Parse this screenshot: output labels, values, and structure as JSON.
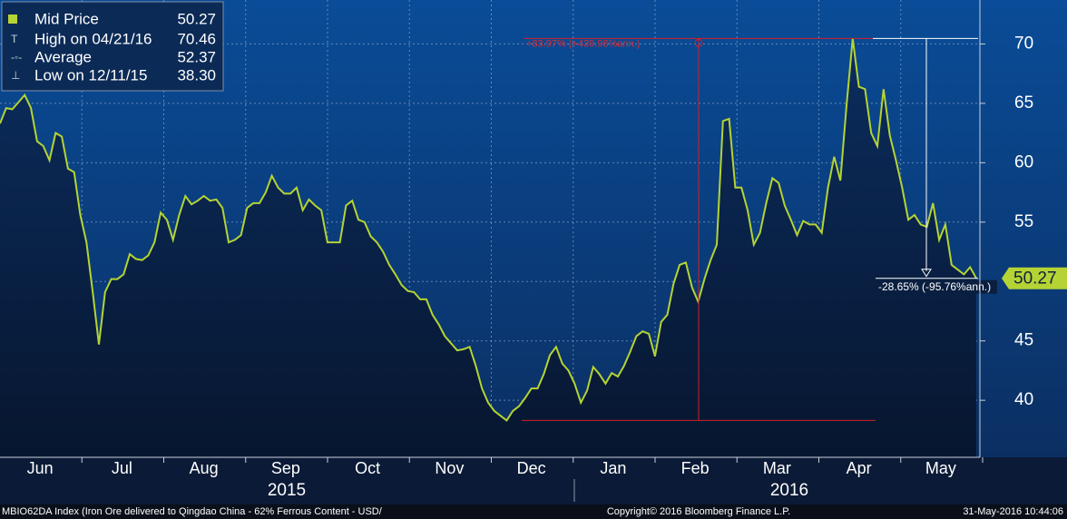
{
  "chart_data": {
    "type": "line",
    "series": [
      {
        "name": "Mid Price",
        "color": "#b5d334",
        "last_value": 50.27,
        "values": [
          63.3,
          64.6,
          64.5,
          65.1,
          65.7,
          64.6,
          61.8,
          61.4,
          60.2,
          62.5,
          62.2,
          59.5,
          59.2,
          55.6,
          53.3,
          49.1,
          44.7,
          49.1,
          50.2,
          50.2,
          50.6,
          52.3,
          51.9,
          51.8,
          52.2,
          53.3,
          55.8,
          55.2,
          53.5,
          55.6,
          57.2,
          56.5,
          56.8,
          57.2,
          56.8,
          56.9,
          56.2,
          53.3,
          53.5,
          53.9,
          56.2,
          56.6,
          56.6,
          57.5,
          58.9,
          57.9,
          57.4,
          57.4,
          57.9,
          56.0,
          56.9,
          56.4,
          56.0,
          53.3,
          53.3,
          53.3,
          56.4,
          56.8,
          55.2,
          55.0,
          53.8,
          53.3,
          52.5,
          51.4,
          50.6,
          49.7,
          49.2,
          49.1,
          48.5,
          48.5,
          47.2,
          46.4,
          45.4,
          44.8,
          44.2,
          44.3,
          44.5,
          42.9,
          41.0,
          39.8,
          39.1,
          38.7,
          38.3,
          39.1,
          39.5,
          40.2,
          41.0,
          41.0,
          42.2,
          43.8,
          44.5,
          43.1,
          42.5,
          41.4,
          39.8,
          40.8,
          42.8,
          42.2,
          41.4,
          42.3,
          42.0,
          42.9,
          44.1,
          45.4,
          45.8,
          45.6,
          43.7,
          46.6,
          47.2,
          49.8,
          51.4,
          51.6,
          49.5,
          48.3,
          50.2,
          51.8,
          53.1,
          63.5,
          63.7,
          57.9,
          57.9,
          56.0,
          53.1,
          54.1,
          56.6,
          58.7,
          58.3,
          56.4,
          55.2,
          53.9,
          55.1,
          54.8,
          54.8,
          54.1,
          57.9,
          60.5,
          58.5,
          64.8,
          70.46,
          66.4,
          66.2,
          62.5,
          61.4,
          66.2,
          62.3,
          60.2,
          57.9,
          55.2,
          55.6,
          54.8,
          54.6,
          56.6,
          53.5,
          54.8,
          51.4,
          51.0,
          50.6,
          51.2,
          50.27
        ]
      }
    ],
    "months": [
      "Jun",
      "Jul",
      "Aug",
      "Sep",
      "Oct",
      "Nov",
      "Dec",
      "Jan",
      "Feb",
      "Mar",
      "Apr",
      "May"
    ],
    "years": [
      "2015",
      "2016"
    ],
    "ylim": [
      35.2,
      73.7
    ],
    "yticks": [
      40,
      45,
      50,
      55,
      60,
      65,
      70
    ],
    "grid": true,
    "legend": {
      "corner": "top-left",
      "stats": [
        {
          "label": "High on 04/21/16",
          "value": 70.46
        },
        {
          "label": "Average",
          "value": 52.37
        },
        {
          "label": "Low on 12/11/15",
          "value": 38.3,
          "value_label": "38.30"
        }
      ]
    },
    "annotations": [
      "+83.97% (+439.98%ann.)",
      "-28.65% (-95.76%ann.)"
    ],
    "footer": {
      "left": "MBIO62DA Index (Iron Ore delivered to Qingdao China - 62% Ferrous Content - USD/",
      "center": "Copyright© 2016 Bloomberg Finance L.P.",
      "right": "31-May-2016 10:44:06"
    }
  }
}
